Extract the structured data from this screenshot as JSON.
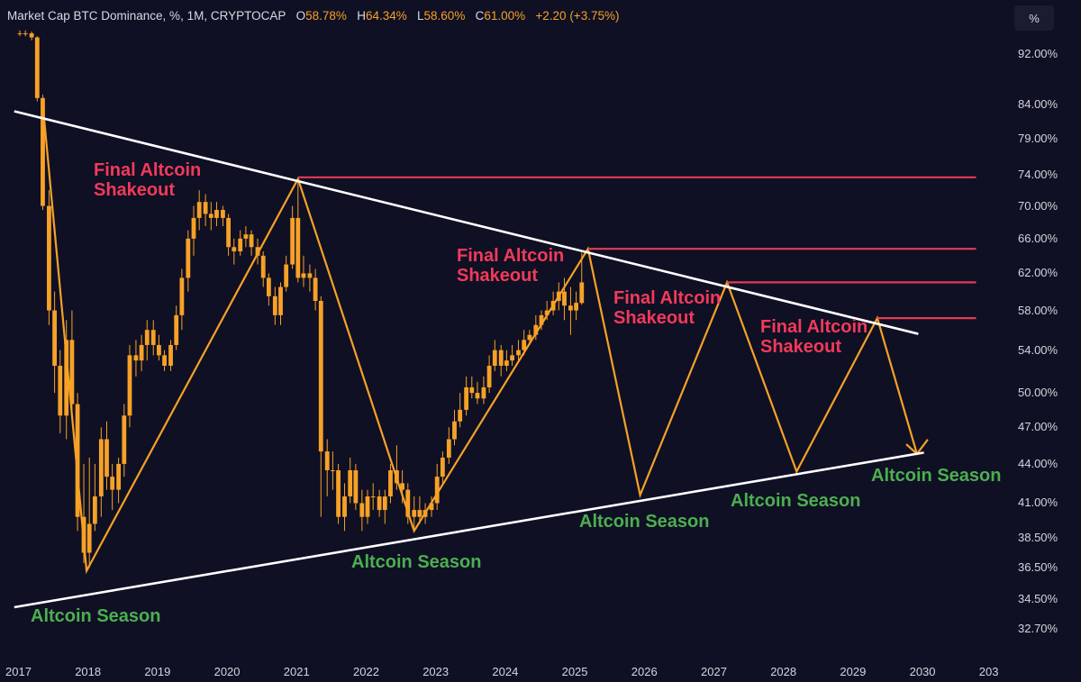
{
  "header": {
    "symbol": "Market Cap BTC Dominance, %, 1M, CRYPTOCAP",
    "o_label": "O",
    "o_value": "58.78%",
    "h_label": "H",
    "h_value": "64.34%",
    "l_label": "L",
    "l_value": "58.60%",
    "c_label": "C",
    "c_value": "61.00%",
    "change": "+2.20 (+3.75%)"
  },
  "unit_button": "%",
  "annotations": {
    "shakeout_1": [
      "Final Altcoin",
      "Shakeout"
    ],
    "shakeout_2": [
      "Final Altcoin",
      "Shakeout"
    ],
    "shakeout_3": [
      "Final Altcoin",
      "Shakeout"
    ],
    "shakeout_4": [
      "Final Altcoin",
      "Shakeout"
    ],
    "season_1": "Altcoin Season",
    "season_2": "Altcoin Season",
    "season_3": "Altcoin Season",
    "season_4": "Altcoin Season",
    "season_5": "Altcoin Season"
  },
  "colors": {
    "background": "#0f1024",
    "candle": "#f7a127",
    "projection": "#f7a127",
    "trendline": "#ffffff",
    "resistance": "#e23b55",
    "season_text": "#4caf50",
    "shakeout_text": "#f23a5a"
  },
  "chart_data": {
    "type": "line",
    "title": "Market Cap BTC Dominance, %, 1M, CRYPTOCAP",
    "xlabel": "",
    "ylabel": "",
    "y_scale": "log",
    "ylim": [
      31.5,
      96
    ],
    "xlim": [
      2017.0,
      2033.0
    ],
    "y_ticks": [
      "92.00%",
      "84.00%",
      "79.00%",
      "74.00%",
      "70.00%",
      "66.00%",
      "62.00%",
      "58.00%",
      "54.00%",
      "50.00%",
      "47.00%",
      "44.00%",
      "41.00%",
      "38.50%",
      "36.50%",
      "34.50%",
      "32.70%"
    ],
    "x_ticks": [
      "2017",
      "2018",
      "2019",
      "2020",
      "2021",
      "2022",
      "2023",
      "2024",
      "2025",
      "2026",
      "2027",
      "2028",
      "2029",
      "2030",
      "203"
    ],
    "series": [
      {
        "kind": "candles",
        "points": [
          [
            2017.0,
            95.5,
            95.4,
            96.0,
            95.0
          ],
          [
            2017.08,
            95.4,
            95.5,
            96.0,
            95.0
          ],
          [
            2017.17,
            95.5,
            94.8,
            95.8,
            94.3
          ],
          [
            2017.25,
            94.8,
            85.0,
            95.0,
            84.5
          ],
          [
            2017.33,
            85.0,
            70.0,
            85.5,
            69.5
          ],
          [
            2017.42,
            70.0,
            58.0,
            72.0,
            56.5
          ],
          [
            2017.5,
            58.0,
            52.5,
            60.0,
            50.0
          ],
          [
            2017.58,
            52.5,
            48.0,
            54.0,
            46.5
          ],
          [
            2017.67,
            48.0,
            55.0,
            57.0,
            46.0
          ],
          [
            2017.75,
            55.0,
            49.0,
            58.0,
            48.0
          ],
          [
            2017.83,
            49.0,
            40.0,
            50.0,
            39.0
          ],
          [
            2017.92,
            40.0,
            37.5,
            44.0,
            36.8
          ],
          [
            2018.0,
            37.5,
            39.5,
            44.5,
            36.5
          ],
          [
            2018.08,
            39.5,
            41.5,
            44.0,
            39.0
          ],
          [
            2018.17,
            41.5,
            46.0,
            47.0,
            40.0
          ],
          [
            2018.25,
            46.0,
            43.0,
            47.5,
            42.0
          ],
          [
            2018.33,
            43.0,
            42.0,
            44.0,
            40.5
          ],
          [
            2018.42,
            42.0,
            44.0,
            44.5,
            41.0
          ],
          [
            2018.5,
            44.0,
            48.0,
            49.0,
            43.0
          ],
          [
            2018.58,
            48.0,
            53.5,
            54.5,
            47.0
          ],
          [
            2018.67,
            53.5,
            53.0,
            55.0,
            51.5
          ],
          [
            2018.75,
            53.0,
            54.5,
            55.5,
            52.0
          ],
          [
            2018.83,
            54.5,
            56.0,
            57.0,
            53.0
          ],
          [
            2018.92,
            56.0,
            54.5,
            57.0,
            53.5
          ],
          [
            2019.0,
            54.5,
            53.5,
            55.5,
            53.0
          ],
          [
            2019.08,
            53.5,
            52.5,
            54.0,
            52.0
          ],
          [
            2019.17,
            52.5,
            54.5,
            55.0,
            52.0
          ],
          [
            2019.25,
            54.5,
            57.5,
            58.5,
            54.0
          ],
          [
            2019.33,
            57.5,
            61.5,
            62.5,
            56.0
          ],
          [
            2019.42,
            61.5,
            66.0,
            67.0,
            60.0
          ],
          [
            2019.5,
            66.0,
            68.5,
            70.0,
            64.0
          ],
          [
            2019.58,
            68.5,
            70.5,
            72.0,
            67.0
          ],
          [
            2019.67,
            70.5,
            69.0,
            71.5,
            67.5
          ],
          [
            2019.75,
            69.0,
            68.5,
            70.5,
            67.0
          ],
          [
            2019.83,
            68.5,
            69.5,
            70.5,
            67.5
          ],
          [
            2019.92,
            69.5,
            68.5,
            70.0,
            67.5
          ],
          [
            2020.0,
            68.5,
            65.0,
            69.0,
            64.0
          ],
          [
            2020.08,
            65.0,
            64.5,
            66.0,
            63.0
          ],
          [
            2020.17,
            64.5,
            66.0,
            67.0,
            64.0
          ],
          [
            2020.25,
            66.0,
            66.5,
            67.5,
            65.0
          ],
          [
            2020.33,
            66.5,
            65.0,
            67.0,
            64.0
          ],
          [
            2020.42,
            65.0,
            64.0,
            66.0,
            63.0
          ],
          [
            2020.5,
            64.0,
            61.5,
            64.5,
            60.5
          ],
          [
            2020.58,
            61.5,
            59.5,
            62.0,
            58.5
          ],
          [
            2020.67,
            59.5,
            57.5,
            60.5,
            56.5
          ],
          [
            2020.75,
            57.5,
            60.5,
            61.0,
            56.5
          ],
          [
            2020.83,
            60.5,
            63.0,
            64.0,
            60.0
          ],
          [
            2020.92,
            63.0,
            68.5,
            70.0,
            62.5
          ],
          [
            2021.0,
            68.5,
            61.5,
            73.5,
            61.0
          ],
          [
            2021.08,
            61.5,
            62.0,
            64.0,
            60.5
          ],
          [
            2021.17,
            62.0,
            61.5,
            63.0,
            60.0
          ],
          [
            2021.25,
            61.5,
            59.0,
            62.5,
            58.0
          ],
          [
            2021.33,
            59.0,
            45.0,
            59.5,
            40.0
          ],
          [
            2021.42,
            45.0,
            43.5,
            46.0,
            41.5
          ],
          [
            2021.5,
            43.5,
            43.5,
            45.0,
            42.0
          ],
          [
            2021.58,
            43.5,
            40.0,
            44.0,
            39.5
          ],
          [
            2021.67,
            40.0,
            41.5,
            42.5,
            39.0
          ],
          [
            2021.75,
            41.5,
            43.5,
            44.5,
            41.0
          ],
          [
            2021.83,
            43.5,
            41.0,
            44.0,
            40.5
          ],
          [
            2021.92,
            41.0,
            40.0,
            42.0,
            39.0
          ],
          [
            2022.0,
            40.0,
            41.5,
            42.0,
            39.5
          ],
          [
            2022.08,
            41.5,
            41.5,
            42.5,
            40.5
          ],
          [
            2022.17,
            41.5,
            40.5,
            42.0,
            40.0
          ],
          [
            2022.25,
            40.5,
            41.5,
            42.0,
            39.5
          ],
          [
            2022.33,
            41.5,
            43.5,
            44.0,
            41.0
          ],
          [
            2022.42,
            43.5,
            42.5,
            45.5,
            42.0
          ],
          [
            2022.5,
            42.5,
            42.0,
            43.5,
            41.0
          ],
          [
            2022.58,
            42.0,
            40.0,
            42.5,
            39.5
          ],
          [
            2022.67,
            40.0,
            40.5,
            41.5,
            39.0
          ],
          [
            2022.75,
            40.5,
            40.0,
            41.5,
            39.5
          ],
          [
            2022.83,
            40.0,
            40.5,
            41.0,
            39.5
          ],
          [
            2022.92,
            40.5,
            41.0,
            41.5,
            40.0
          ],
          [
            2023.0,
            41.0,
            43.0,
            44.0,
            40.5
          ],
          [
            2023.08,
            43.0,
            44.5,
            45.0,
            42.5
          ],
          [
            2023.17,
            44.5,
            46.0,
            47.0,
            44.0
          ],
          [
            2023.25,
            46.0,
            47.5,
            48.5,
            45.5
          ],
          [
            2023.33,
            47.5,
            48.5,
            50.0,
            47.0
          ],
          [
            2023.42,
            48.5,
            50.5,
            51.5,
            48.0
          ],
          [
            2023.5,
            50.5,
            50.0,
            51.5,
            49.5
          ],
          [
            2023.58,
            50.0,
            49.5,
            51.0,
            49.0
          ],
          [
            2023.67,
            49.5,
            50.5,
            51.5,
            49.0
          ],
          [
            2023.75,
            50.5,
            52.5,
            53.5,
            50.0
          ],
          [
            2023.83,
            52.5,
            54.0,
            55.0,
            52.0
          ],
          [
            2023.92,
            54.0,
            52.5,
            54.5,
            51.5
          ],
          [
            2024.0,
            52.5,
            53.0,
            54.0,
            52.0
          ],
          [
            2024.08,
            53.0,
            53.5,
            54.5,
            52.5
          ],
          [
            2024.17,
            53.5,
            54.0,
            55.0,
            53.0
          ],
          [
            2024.25,
            54.0,
            55.0,
            56.0,
            53.5
          ],
          [
            2024.33,
            55.0,
            55.5,
            56.0,
            54.5
          ],
          [
            2024.42,
            55.5,
            56.5,
            57.5,
            55.0
          ],
          [
            2024.5,
            56.5,
            57.5,
            58.0,
            56.0
          ],
          [
            2024.58,
            57.5,
            58.0,
            59.0,
            57.0
          ],
          [
            2024.67,
            58.0,
            59.0,
            60.0,
            57.5
          ],
          [
            2024.75,
            59.0,
            60.0,
            61.0,
            58.0
          ],
          [
            2024.83,
            60.0,
            58.5,
            61.5,
            57.0
          ],
          [
            2024.92,
            58.5,
            58.0,
            60.5,
            55.5
          ],
          [
            2025.0,
            58.0,
            58.8,
            60.0,
            57.0
          ],
          [
            2025.08,
            58.78,
            61.0,
            64.34,
            58.6
          ]
        ]
      },
      {
        "kind": "projection",
        "points": [
          [
            2017.33,
            84.0
          ],
          [
            2017.96,
            36.3
          ],
          [
            2021.0,
            73.5
          ],
          [
            2022.67,
            39.0
          ],
          [
            2025.17,
            64.8
          ],
          [
            2025.92,
            41.6
          ],
          [
            2027.17,
            61.0
          ],
          [
            2028.17,
            43.4
          ],
          [
            2029.33,
            57.2
          ],
          [
            2029.9,
            44.8
          ]
        ]
      },
      {
        "kind": "descending-trendline",
        "points": [
          [
            2016.92,
            83.0
          ],
          [
            2029.92,
            55.6
          ]
        ]
      },
      {
        "kind": "ascending-trendline",
        "points": [
          [
            2016.92,
            34.0
          ],
          [
            2030.0,
            44.9
          ]
        ]
      },
      {
        "kind": "resistance",
        "points": [
          [
            2021.0,
            73.7
          ],
          [
            2030.75,
            73.7
          ]
        ]
      },
      {
        "kind": "resistance",
        "points": [
          [
            2025.17,
            64.8
          ],
          [
            2030.75,
            64.8
          ]
        ]
      },
      {
        "kind": "resistance",
        "points": [
          [
            2027.17,
            61.0
          ],
          [
            2030.75,
            61.0
          ]
        ]
      },
      {
        "kind": "resistance",
        "points": [
          [
            2029.33,
            57.2
          ],
          [
            2030.75,
            57.2
          ]
        ]
      }
    ],
    "grid": false,
    "legend": "none"
  }
}
